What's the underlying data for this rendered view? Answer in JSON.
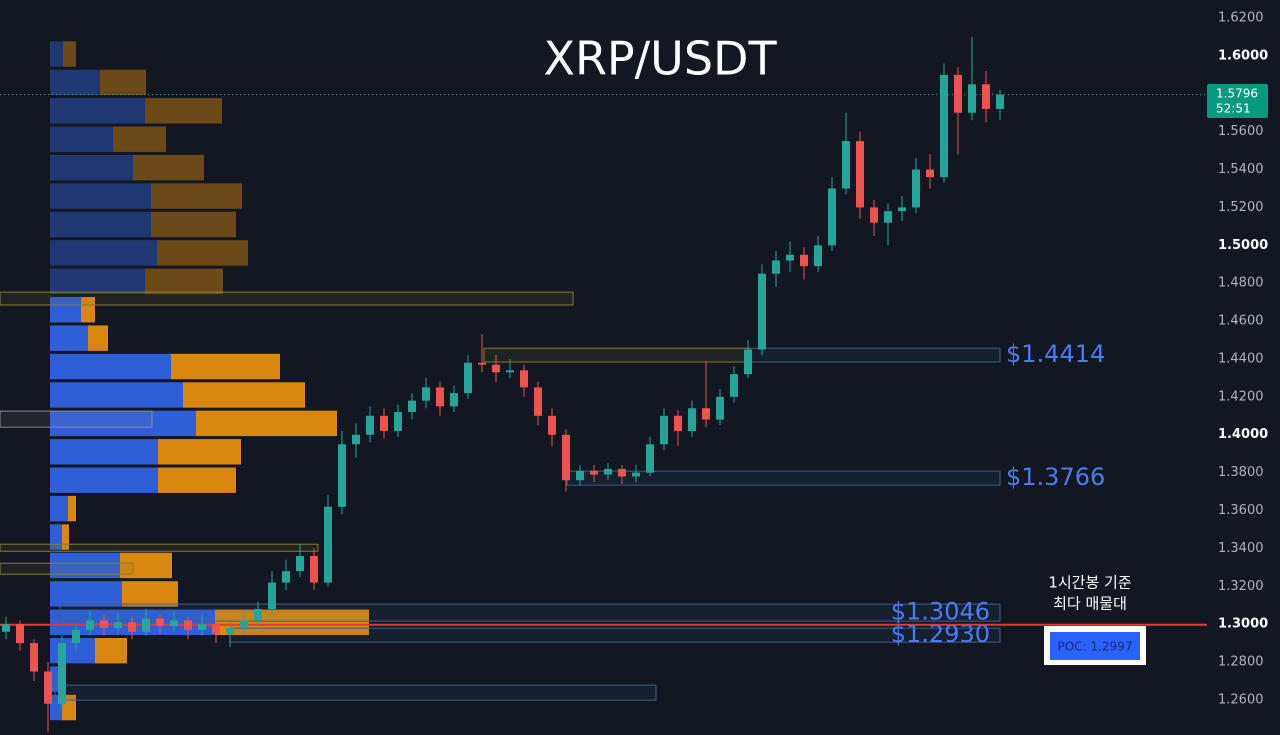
{
  "chart_data": {
    "type": "candlestick",
    "title": "XRP/USDT",
    "up_color": "#26a69a",
    "down_color": "#ef5350",
    "ylim": [
      1.2415,
      1.6295
    ],
    "yticks": [
      {
        "value": 1.26,
        "label": "1.2600"
      },
      {
        "value": 1.28,
        "label": "1.2800"
      },
      {
        "value": 1.3,
        "label": "1.3000"
      },
      {
        "value": 1.32,
        "label": "1.3200"
      },
      {
        "value": 1.34,
        "label": "1.3400"
      },
      {
        "value": 1.36,
        "label": "1.3600"
      },
      {
        "value": 1.38,
        "label": "1.3800"
      },
      {
        "value": 1.4,
        "label": "1.4000"
      },
      {
        "value": 1.42,
        "label": "1.4200"
      },
      {
        "value": 1.44,
        "label": "1.4400"
      },
      {
        "value": 1.46,
        "label": "1.4600"
      },
      {
        "value": 1.48,
        "label": "1.4800"
      },
      {
        "value": 1.5,
        "label": "1.5000"
      },
      {
        "value": 1.52,
        "label": "1.5200"
      },
      {
        "value": 1.54,
        "label": "1.5400"
      },
      {
        "value": 1.56,
        "label": "1.5600"
      },
      {
        "value": 1.58,
        "label": "1.5800"
      },
      {
        "value": 1.6,
        "label": "1.6000"
      },
      {
        "value": 1.62,
        "label": "1.6200"
      }
    ],
    "open": [
      1.296,
      1.3,
      1.29,
      1.275,
      1.258,
      1.29,
      1.297,
      1.302,
      1.298,
      1.301,
      1.296,
      1.303,
      1.299,
      1.302,
      1.297,
      1.3,
      1.295,
      1.298,
      1.302,
      1.308,
      1.322,
      1.328,
      1.336,
      1.322,
      1.362,
      1.395,
      1.4,
      1.41,
      1.402,
      1.412,
      1.418,
      1.425,
      1.415,
      1.422,
      1.438,
      1.437,
      1.433,
      1.434,
      1.425,
      1.41,
      1.4,
      1.376,
      1.381,
      1.379,
      1.382,
      1.378,
      1.38,
      1.395,
      1.41,
      1.402,
      1.414,
      1.408,
      1.42,
      1.432,
      1.445,
      1.485,
      1.492,
      1.495,
      1.489,
      1.5,
      1.53,
      1.555,
      1.52,
      1.512,
      1.518,
      1.52,
      1.54,
      1.536,
      1.59,
      1.57,
      1.585,
      1.572
    ],
    "high": [
      1.304,
      1.302,
      1.292,
      1.28,
      1.294,
      1.3,
      1.307,
      1.305,
      1.306,
      1.304,
      1.308,
      1.305,
      1.307,
      1.304,
      1.305,
      1.302,
      1.301,
      1.306,
      1.312,
      1.328,
      1.334,
      1.342,
      1.34,
      1.368,
      1.402,
      1.406,
      1.415,
      1.414,
      1.416,
      1.422,
      1.43,
      1.428,
      1.426,
      1.442,
      1.453,
      1.442,
      1.44,
      1.437,
      1.428,
      1.414,
      1.403,
      1.384,
      1.384,
      1.385,
      1.384,
      1.384,
      1.399,
      1.414,
      1.413,
      1.418,
      1.439,
      1.424,
      1.436,
      1.45,
      1.49,
      1.497,
      1.502,
      1.499,
      1.505,
      1.536,
      1.57,
      1.56,
      1.524,
      1.522,
      1.526,
      1.546,
      1.548,
      1.596,
      1.594,
      1.61,
      1.592,
      1.582
    ],
    "low": [
      1.292,
      1.286,
      1.27,
      1.243,
      1.255,
      1.286,
      1.294,
      1.294,
      1.295,
      1.292,
      1.294,
      1.295,
      1.296,
      1.292,
      1.294,
      1.29,
      1.288,
      1.295,
      1.299,
      1.305,
      1.318,
      1.325,
      1.318,
      1.32,
      1.358,
      1.388,
      1.396,
      1.398,
      1.399,
      1.408,
      1.414,
      1.41,
      1.412,
      1.419,
      1.433,
      1.428,
      1.43,
      1.42,
      1.405,
      1.394,
      1.37,
      1.373,
      1.375,
      1.376,
      1.374,
      1.375,
      1.378,
      1.392,
      1.394,
      1.399,
      1.404,
      1.405,
      1.417,
      1.43,
      1.442,
      1.478,
      1.486,
      1.482,
      1.486,
      1.497,
      1.527,
      1.514,
      1.505,
      1.5,
      1.513,
      1.517,
      1.53,
      1.533,
      1.548,
      1.566,
      1.565,
      1.566
    ],
    "close": [
      1.3,
      1.29,
      1.275,
      1.258,
      1.29,
      1.297,
      1.302,
      1.298,
      1.301,
      1.296,
      1.303,
      1.299,
      1.302,
      1.297,
      1.3,
      1.295,
      1.298,
      1.302,
      1.308,
      1.322,
      1.328,
      1.336,
      1.322,
      1.362,
      1.395,
      1.4,
      1.41,
      1.402,
      1.412,
      1.418,
      1.425,
      1.415,
      1.422,
      1.438,
      1.437,
      1.433,
      1.434,
      1.425,
      1.41,
      1.4,
      1.376,
      1.381,
      1.379,
      1.382,
      1.378,
      1.38,
      1.395,
      1.41,
      1.402,
      1.414,
      1.408,
      1.42,
      1.432,
      1.445,
      1.485,
      1.492,
      1.495,
      1.489,
      1.5,
      1.53,
      1.555,
      1.52,
      1.512,
      1.518,
      1.52,
      1.54,
      1.536,
      1.59,
      1.57,
      1.585,
      1.572,
      1.5796
    ],
    "countdown": "52:51",
    "volume_profile": {
      "bins": [
        1.2485,
        1.2635,
        1.2785,
        1.2935,
        1.3085,
        1.3235,
        1.3385,
        1.3535,
        1.3685,
        1.3835,
        1.3985,
        1.4135,
        1.4285,
        1.4435,
        1.4585,
        1.4735,
        1.4885,
        1.5035,
        1.5185,
        1.5335,
        1.5485,
        1.5635,
        1.5785,
        1.5935,
        1.6085
      ],
      "buy": [
        12,
        8,
        45,
        165,
        72,
        70,
        12,
        18,
        108,
        108,
        146,
        133,
        121,
        38,
        31,
        95,
        107,
        101,
        101,
        83,
        63,
        95,
        50,
        13
      ],
      "sell": [
        14,
        5,
        32,
        154,
        56,
        52,
        7,
        8,
        78,
        83,
        141,
        122,
        109,
        20,
        14,
        78,
        91,
        85,
        91,
        71,
        53,
        77,
        46,
        13
      ],
      "buy_color": "#2f5fd6",
      "sell_color": "#d9870f"
    },
    "zones": [
      {
        "low": 1.4685,
        "high": 1.4753,
        "color": "#8c7d2c"
      },
      {
        "low": 1.4384,
        "high": 1.4457,
        "color": "#8c7d2c"
      },
      {
        "low": 1.4384,
        "high": 1.4457,
        "color": "#3a5f93",
        "label": "$1.4414"
      },
      {
        "low": 1.404,
        "high": 1.4125,
        "color": "#8a8a8a"
      },
      {
        "low": 1.3385,
        "high": 1.3422,
        "color": "#8c7d2c"
      },
      {
        "low": 1.3264,
        "high": 1.3322,
        "color": "#8c7d2c"
      },
      {
        "low": 1.3734,
        "high": 1.3808,
        "color": "#3a5f93",
        "label": "$1.3766"
      },
      {
        "low": 1.3016,
        "high": 1.3106,
        "color": "#3a5f93",
        "label": "$1.3046"
      },
      {
        "low": 1.2905,
        "high": 1.2979,
        "color": "#3a5f93",
        "label": "$1.2930"
      },
      {
        "low": 1.2599,
        "high": 1.2678,
        "color": "#3a5f93"
      }
    ],
    "poc": {
      "value": 1.2997,
      "label": "POC: 1.2997",
      "color": "#e53935"
    },
    "annotation": [
      "1시간봉 기준",
      "최다 매물대"
    ]
  }
}
